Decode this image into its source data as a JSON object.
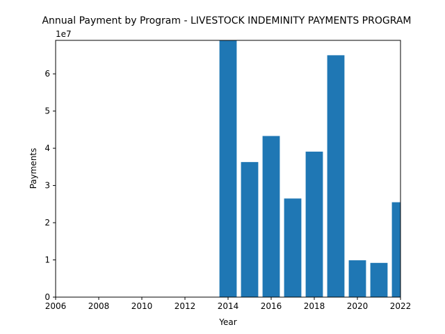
{
  "chart_data": {
    "type": "bar",
    "title": "Annual Payment by Program - LIVESTOCK INDEMINITY PAYMENTS PROGRAM",
    "xlabel": "Year",
    "ylabel": "Payments",
    "y_multiplier_label": "1e7",
    "x": [
      2014,
      2015,
      2016,
      2017,
      2018,
      2019,
      2020,
      2021,
      2022
    ],
    "values": [
      69000000,
      36300000,
      43300000,
      26500000,
      39100000,
      65000000,
      9900000,
      9200000,
      25500000
    ],
    "xlim": [
      2006,
      2022
    ],
    "ylim": [
      0,
      69000000
    ],
    "x_ticks": [
      "2006",
      "2008",
      "2010",
      "2012",
      "2014",
      "2016",
      "2018",
      "2020",
      "2022"
    ],
    "y_ticks": [
      "0",
      "1",
      "2",
      "3",
      "4",
      "5",
      "6"
    ],
    "bar_color": "#1f77b4",
    "grid": false
  }
}
